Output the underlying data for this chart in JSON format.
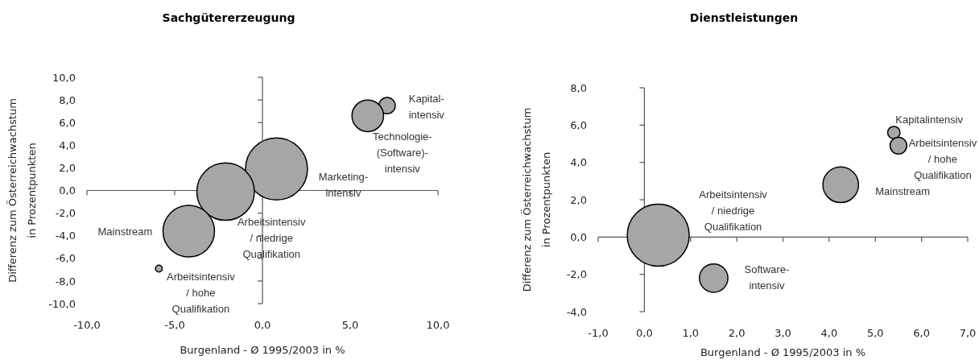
{
  "chart_data": [
    {
      "type": "bubble",
      "title": "Sachgütererzeugung",
      "xlabel": "Burgenland - Ø 1995/2003 in %",
      "ylabel": "Differenz zum Österreichwachstum\nin Prozentpunkten",
      "xlim": [
        -10,
        10
      ],
      "xticks": [
        {
          "value": -10,
          "label": "-10,0"
        },
        {
          "value": -5,
          "label": "-5,0"
        },
        {
          "value": 0,
          "label": "0,0"
        },
        {
          "value": 5,
          "label": "5,0"
        },
        {
          "value": 10,
          "label": "10,0"
        }
      ],
      "ylim": [
        -10,
        10
      ],
      "yticks": [
        {
          "value": -10,
          "label": "-10,0"
        },
        {
          "value": -8,
          "label": "-8,0"
        },
        {
          "value": -6,
          "label": "-6,0"
        },
        {
          "value": -4,
          "label": "-4,0"
        },
        {
          "value": -2,
          "label": "-2,0"
        },
        {
          "value": 0,
          "label": "0,0"
        },
        {
          "value": 2,
          "label": "2,0"
        },
        {
          "value": 4,
          "label": "4,0"
        },
        {
          "value": 6,
          "label": "6,0"
        },
        {
          "value": 8,
          "label": "8,0"
        },
        {
          "value": 10,
          "label": "10,0"
        }
      ],
      "series": [
        {
          "name": "Kapital-\nintensiv",
          "color": "#a6a6a6",
          "x": [
            7.1
          ],
          "values": [
            7.5
          ],
          "sizes": [
            0.07
          ]
        },
        {
          "name": "Technologie-\n(Software)-\nintensiv",
          "color": "#a6a6a6",
          "x": [
            6.0
          ],
          "values": [
            6.6
          ],
          "sizes": [
            0.26
          ]
        },
        {
          "name": "Marketing-\nintensiv",
          "color": "#a6a6a6",
          "x": [
            0.8
          ],
          "values": [
            1.9
          ],
          "sizes": [
            1
          ]
        },
        {
          "name": "Arbeitsintensiv\n/ niedrige\nQualifikation",
          "color": "#a6a6a6",
          "x": [
            -2.1
          ],
          "values": [
            -0.1
          ],
          "sizes": [
            0.86
          ]
        },
        {
          "name": "Mainstream",
          "color": "#a6a6a6",
          "x": [
            -4.2
          ],
          "values": [
            -3.6
          ],
          "sizes": [
            0.69
          ]
        },
        {
          "name": "Arbeitsintensiv\n/ hohe\nQualifikation",
          "color": "#a6a6a6",
          "x": [
            -5.9
          ],
          "values": [
            -6.9
          ],
          "sizes": [
            0.012
          ]
        }
      ]
    },
    {
      "type": "bubble",
      "title": "Dienstleistungen",
      "xlabel": "Burgenland - Ø 1995/2003 in %",
      "ylabel": "Differenz zum Österreichwachstum\nin Prozentpunkten",
      "xlim": [
        -1,
        7
      ],
      "xticks": [
        {
          "value": -1,
          "label": "-1,0"
        },
        {
          "value": 0,
          "label": "0,0"
        },
        {
          "value": 1,
          "label": "1,0"
        },
        {
          "value": 2,
          "label": "2,0"
        },
        {
          "value": 3,
          "label": "3,0"
        },
        {
          "value": 4,
          "label": "4,0"
        },
        {
          "value": 5,
          "label": "5,0"
        },
        {
          "value": 6,
          "label": "6,0"
        },
        {
          "value": 7,
          "label": "7,0"
        }
      ],
      "ylim": [
        -4,
        8
      ],
      "yticks": [
        {
          "value": -4,
          "label": "-4,0"
        },
        {
          "value": -2,
          "label": "-2,0"
        },
        {
          "value": 0,
          "label": "0,0"
        },
        {
          "value": 2,
          "label": "2,0"
        },
        {
          "value": 4,
          "label": "4,0"
        },
        {
          "value": 6,
          "label": "6,0"
        },
        {
          "value": 8,
          "label": "8,0"
        }
      ],
      "series": [
        {
          "name": "Kapitalintensiv",
          "color": "#a6a6a6",
          "x": [
            5.4
          ],
          "values": [
            5.6
          ],
          "sizes": [
            0.04
          ]
        },
        {
          "name": "Arbeitsintensiv\n/ hohe\nQualifikation",
          "color": "#a6a6a6",
          "x": [
            5.5
          ],
          "values": [
            4.9
          ],
          "sizes": [
            0.073
          ]
        },
        {
          "name": "Mainstream",
          "color": "#a6a6a6",
          "x": [
            4.25
          ],
          "values": [
            2.8
          ],
          "sizes": [
            0.33
          ]
        },
        {
          "name": "Arbeitsintensiv\n/ niedrige\nQualifikation",
          "color": "#a6a6a6",
          "x": [
            0.3
          ],
          "values": [
            0.1
          ],
          "sizes": [
            1
          ]
        },
        {
          "name": "Software-\nintensiv",
          "color": "#a6a6a6",
          "x": [
            1.5
          ],
          "values": [
            -2.2
          ],
          "sizes": [
            0.21
          ]
        }
      ]
    }
  ]
}
